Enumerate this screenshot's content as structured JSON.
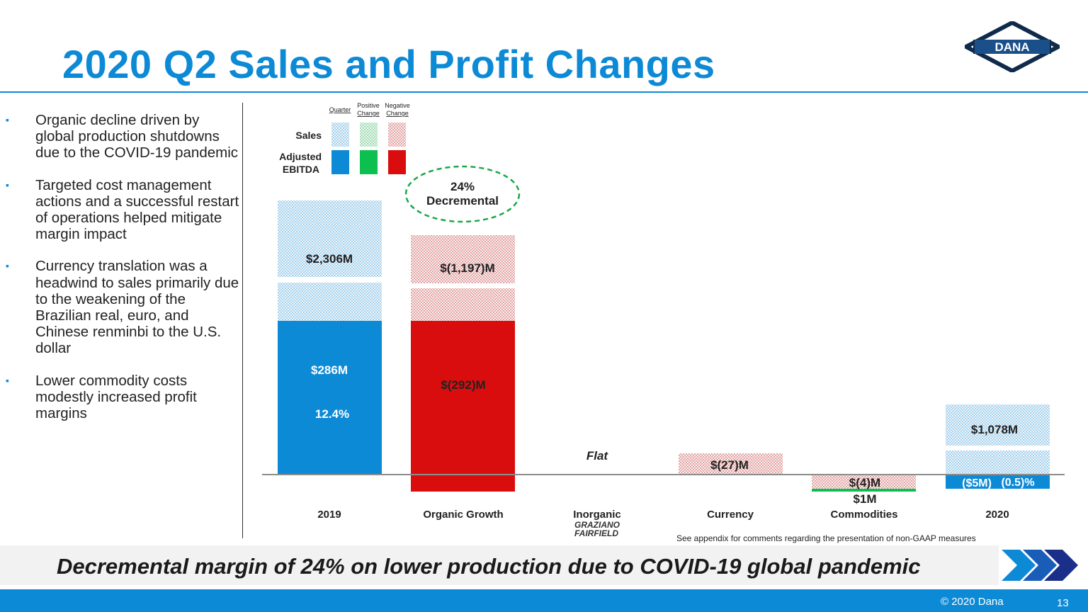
{
  "title": "2020 Q2 Sales and Profit Changes",
  "logo_text": "DANA",
  "bullets": [
    "Organic decline driven by global production shutdowns due to the COVID-19 pandemic",
    "Targeted cost management actions and a successful restart of operations helped mitigate margin impact",
    "Currency translation was a headwind to sales primarily due to the weakening of the Brazilian real, euro, and Chinese renminbi to the U.S. dollar",
    "Lower commodity costs modestly increased profit margins"
  ],
  "legend": {
    "col_quarter": "Quarter",
    "col_positive": [
      "Positive",
      "Change"
    ],
    "col_negative": [
      "Negative",
      "Change"
    ],
    "row_sales": "Sales",
    "row_ebitda": [
      "Adjusted",
      "EBITDA"
    ]
  },
  "callout": [
    "24%",
    "Decremental"
  ],
  "sub_logo": [
    "GRAZIANO",
    "FAIRFIELD"
  ],
  "footnote": "See appendix for comments regarding the presentation of non-GAAP measures",
  "banner": "Decremental margin of 24% on lower production due to COVID-19 global pandemic",
  "copyright": "© 2020 Dana",
  "page_number": "13",
  "colors": {
    "brand_blue": "#0d8ad6",
    "positive_green": "#0dbf4f",
    "negative_red": "#d90d0d"
  },
  "chart_data": {
    "type": "bar",
    "subtype": "waterfall",
    "categories": [
      "2019",
      "Organic Growth",
      "Inorganic",
      "Currency",
      "Commodities",
      "2020"
    ],
    "sales": {
      "name": "Sales",
      "values": [
        2306,
        -1197,
        0,
        -27,
        -4,
        1078
      ],
      "labels": [
        "$2,306M",
        "$(1,197)M",
        "Flat",
        "$(27)M",
        "$(4)M",
        "$1,078M"
      ]
    },
    "adjusted_ebitda": {
      "name": "Adjusted EBITDA",
      "values": [
        286,
        -292,
        0,
        0,
        1,
        -5
      ],
      "labels": [
        "$286M",
        "$(292)M",
        "",
        "",
        "$1M",
        "($5M)"
      ]
    },
    "ebitda_margin_labels": [
      "12.4%",
      "",
      "",
      "",
      "",
      "(0.5)%"
    ]
  }
}
